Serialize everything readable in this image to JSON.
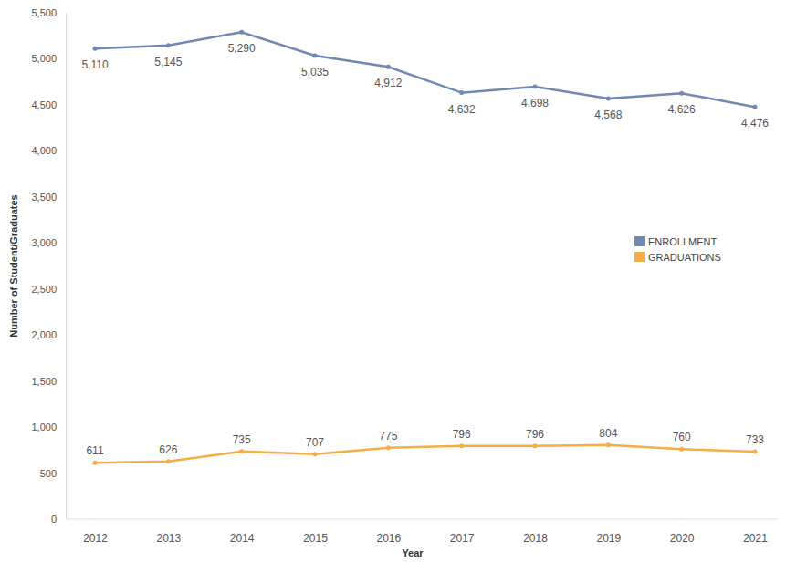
{
  "chart_data": {
    "type": "line",
    "x_label": "Year",
    "y_label": "Number of Student/Graduates",
    "categories": [
      "2012",
      "2013",
      "2014",
      "2015",
      "2016",
      "2017",
      "2018",
      "2019",
      "2020",
      "2021"
    ],
    "series": [
      {
        "name": "ENROLLMENT",
        "color": "#6f88b4",
        "marker": "circle",
        "values": [
          5110,
          5145,
          5290,
          5035,
          4912,
          4632,
          4698,
          4568,
          4626,
          4476
        ],
        "value_labels": [
          "5,110",
          "5,145",
          "5,290",
          "5,035",
          "4,912",
          "4,632",
          "4,698",
          "4,568",
          "4,626",
          "4,476"
        ]
      },
      {
        "name": "GRADUATIONS",
        "color": "#f5ad47",
        "marker": "circle",
        "values": [
          611,
          626,
          735,
          707,
          775,
          796,
          796,
          804,
          760,
          733
        ]
      }
    ],
    "ylim": [
      0,
      5500
    ],
    "yticks": [
      0,
      500,
      {
        "value": 1000,
        "label": "1,000"
      },
      {
        "value": 1500,
        "label": "1,500"
      },
      {
        "value": 2000,
        "label": "2,000"
      },
      {
        "value": 2500,
        "label": "2,500"
      },
      {
        "value": 3000,
        "label": "3,000"
      },
      {
        "value": 3500,
        "label": "3,500"
      },
      {
        "value": 4000,
        "label": "4,000"
      },
      {
        "value": 4500,
        "label": "4,500"
      },
      {
        "value": 5000,
        "label": "5,000"
      },
      {
        "value": 5500,
        "label": "5,500"
      }
    ],
    "data_labels": true,
    "legend": "right",
    "grid": false
  }
}
